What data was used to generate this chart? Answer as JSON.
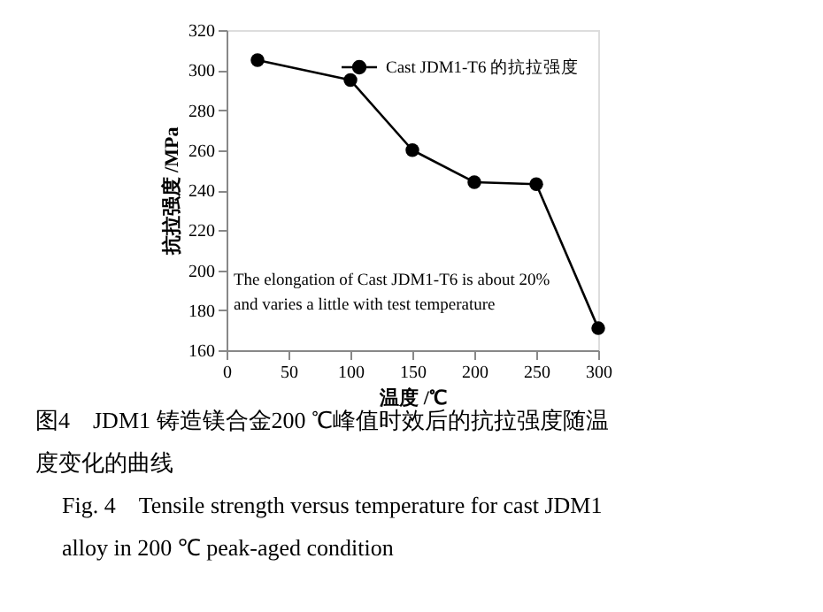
{
  "chart_data": {
    "type": "line",
    "x": [
      25,
      100,
      150,
      200,
      250,
      300
    ],
    "series": [
      {
        "name": "Cast JDM1-T6 的抗拉强度",
        "color": "#000000",
        "values": [
          305,
          295,
          260,
          244,
          243,
          171
        ]
      }
    ],
    "xlabel": "温度 /℃",
    "ylabel": "抗拉强度 /MPa",
    "xlim": [
      0,
      300
    ],
    "xticks": [
      0,
      50,
      100,
      150,
      200,
      250,
      300
    ],
    "ylim": [
      160,
      320
    ],
    "yticks": [
      160,
      180,
      200,
      220,
      240,
      260,
      280,
      300,
      320
    ],
    "marker": "circle",
    "line_style": "solid",
    "grid": false,
    "legend": "top right",
    "annotations": [
      "The elongation of Cast JDM1-T6 is about 20%\nand varies a little with test temperature",
      "图4　JDM1 铸造镁合金200 ℃峰值时效后的抗拉强度随温度变化的曲线",
      "Fig. 4　Tensile strength versus temperature for cast JDM1\nalloy in 200 ℃  peak-aged condition"
    ]
  }
}
